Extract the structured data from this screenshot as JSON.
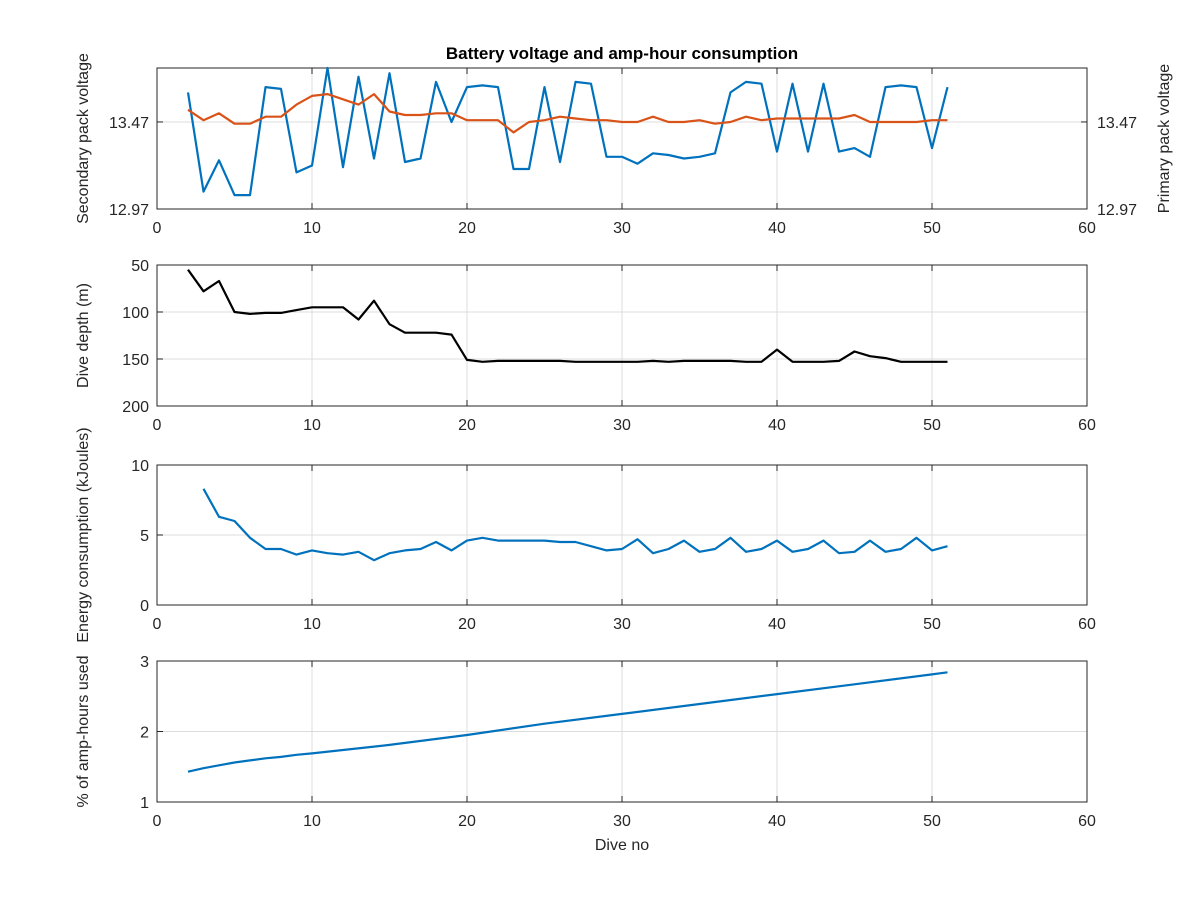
{
  "colors": {
    "blue": "#0072BD",
    "orange": "#D95319",
    "black": "#000000",
    "axis": "#262626",
    "grid": "#dcdcdc"
  },
  "chart_data": [
    {
      "type": "line",
      "title": "Battery voltage and amp-hour consumption",
      "xlabel": "",
      "ylabel": "Secondary pack voltage",
      "ylabel_right": "Primary pack voltage",
      "xlim": [
        0,
        60
      ],
      "xticks": [
        "0",
        "10",
        "20",
        "30",
        "40",
        "50",
        "60"
      ],
      "ylim": [
        12.97,
        13.78
      ],
      "yticks": [
        12.97,
        13.47
      ],
      "ytick_labels": [
        "12.97",
        "13.47"
      ],
      "ylim_right": [
        12.97,
        13.78
      ],
      "yticks_right": [
        12.97,
        13.47
      ],
      "ytick_labels_right": [
        "12.97",
        "13.47"
      ],
      "grid": true,
      "series": [
        {
          "axis": "left",
          "color": "#0072BD",
          "x": [
            2,
            3,
            4,
            5,
            6,
            7,
            8,
            9,
            10,
            11,
            12,
            13,
            14,
            15,
            16,
            17,
            18,
            19,
            20,
            21,
            22,
            23,
            24,
            25,
            26,
            27,
            28,
            29,
            30,
            31,
            32,
            33,
            34,
            35,
            36,
            37,
            38,
            39,
            40,
            41,
            42,
            43,
            44,
            45,
            46,
            47,
            48,
            49,
            50,
            51
          ],
          "y": [
            13.64,
            13.07,
            13.25,
            13.05,
            13.05,
            13.67,
            13.66,
            13.18,
            13.22,
            13.78,
            13.21,
            13.73,
            13.26,
            13.75,
            13.24,
            13.26,
            13.7,
            13.47,
            13.67,
            13.68,
            13.67,
            13.2,
            13.2,
            13.67,
            13.24,
            13.7,
            13.69,
            13.27,
            13.27,
            13.23,
            13.29,
            13.28,
            13.26,
            13.27,
            13.29,
            13.64,
            13.7,
            13.69,
            13.3,
            13.69,
            13.3,
            13.69,
            13.3,
            13.32,
            13.27,
            13.67,
            13.68,
            13.67,
            13.32,
            13.67
          ]
        },
        {
          "axis": "right",
          "color": "#D95319",
          "x": [
            2,
            3,
            4,
            5,
            6,
            7,
            8,
            9,
            10,
            11,
            12,
            13,
            14,
            15,
            16,
            17,
            18,
            19,
            20,
            21,
            22,
            23,
            24,
            25,
            26,
            27,
            28,
            29,
            30,
            31,
            32,
            33,
            34,
            35,
            36,
            37,
            38,
            39,
            40,
            41,
            42,
            43,
            44,
            45,
            46,
            47,
            48,
            49,
            50,
            51
          ],
          "y": [
            13.54,
            13.48,
            13.52,
            13.46,
            13.46,
            13.5,
            13.5,
            13.57,
            13.62,
            13.63,
            13.6,
            13.57,
            13.63,
            13.53,
            13.51,
            13.51,
            13.52,
            13.52,
            13.48,
            13.48,
            13.48,
            13.41,
            13.47,
            13.48,
            13.5,
            13.49,
            13.48,
            13.48,
            13.47,
            13.47,
            13.5,
            13.47,
            13.47,
            13.48,
            13.46,
            13.47,
            13.5,
            13.48,
            13.49,
            13.49,
            13.49,
            13.49,
            13.49,
            13.51,
            13.47,
            13.47,
            13.47,
            13.47,
            13.48,
            13.48
          ]
        }
      ]
    },
    {
      "type": "line",
      "title": "",
      "xlabel": "",
      "ylabel": "Dive depth (m)",
      "xlim": [
        0,
        60
      ],
      "xticks": [
        "0",
        "10",
        "20",
        "30",
        "40",
        "50",
        "60"
      ],
      "ylim": [
        -200,
        -50
      ],
      "yticks": [
        -50,
        -100,
        -150,
        -200
      ],
      "ytick_labels": [
        "50",
        "100",
        "150",
        "200"
      ],
      "grid": true,
      "series": [
        {
          "color": "#000000",
          "x": [
            2,
            3,
            4,
            5,
            6,
            7,
            8,
            9,
            10,
            11,
            12,
            13,
            14,
            15,
            16,
            17,
            18,
            19,
            20,
            21,
            22,
            23,
            24,
            25,
            26,
            27,
            28,
            29,
            30,
            31,
            32,
            33,
            34,
            35,
            36,
            37,
            38,
            39,
            40,
            41,
            42,
            43,
            44,
            45,
            46,
            47,
            48,
            49,
            50,
            51
          ],
          "y": [
            -55,
            -78,
            -67,
            -100,
            -102,
            -101,
            -101,
            -98,
            -95,
            -95,
            -95,
            -108,
            -88,
            -113,
            -122,
            -122,
            -122,
            -124,
            -151,
            -153,
            -152,
            -152,
            -152,
            -152,
            -152,
            -153,
            -153,
            -153,
            -153,
            -153,
            -152,
            -153,
            -152,
            -152,
            -152,
            -152,
            -153,
            -153,
            -140,
            -153,
            -153,
            -153,
            -152,
            -142,
            -147,
            -149,
            -153,
            -153,
            -153,
            -153
          ]
        }
      ]
    },
    {
      "type": "line",
      "title": "",
      "xlabel": "",
      "ylabel": "Energy consumption (kJoules)",
      "xlim": [
        0,
        60
      ],
      "xticks": [
        "0",
        "10",
        "20",
        "30",
        "40",
        "50",
        "60"
      ],
      "ylim": [
        0,
        10
      ],
      "yticks": [
        0,
        5,
        10
      ],
      "ytick_labels": [
        "0",
        "5",
        "10"
      ],
      "grid": true,
      "series": [
        {
          "color": "#0072BD",
          "x": [
            3,
            4,
            5,
            6,
            7,
            8,
            9,
            10,
            11,
            12,
            13,
            14,
            15,
            16,
            17,
            18,
            19,
            20,
            21,
            22,
            23,
            24,
            25,
            26,
            27,
            28,
            29,
            30,
            31,
            32,
            33,
            34,
            35,
            36,
            37,
            38,
            39,
            40,
            41,
            42,
            43,
            44,
            45,
            46,
            47,
            48,
            49,
            50,
            51
          ],
          "y": [
            8.3,
            6.3,
            6.0,
            4.8,
            4.0,
            4.0,
            3.6,
            3.9,
            3.7,
            3.6,
            3.8,
            3.2,
            3.7,
            3.9,
            4.0,
            4.5,
            3.9,
            4.6,
            4.8,
            4.6,
            4.6,
            4.6,
            4.6,
            4.5,
            4.5,
            4.2,
            3.9,
            4.0,
            4.7,
            3.7,
            4.0,
            4.6,
            3.8,
            4.0,
            4.8,
            3.8,
            4.0,
            4.6,
            3.8,
            4.0,
            4.6,
            3.7,
            3.8,
            4.6,
            3.8,
            4.0,
            4.8,
            3.9,
            4.2
          ]
        }
      ]
    },
    {
      "type": "line",
      "title": "",
      "xlabel": "Dive no",
      "ylabel": "% of amp-hours used",
      "xlim": [
        0,
        60
      ],
      "xticks": [
        "0",
        "10",
        "20",
        "30",
        "40",
        "50",
        "60"
      ],
      "ylim": [
        1,
        3
      ],
      "yticks": [
        1,
        2,
        3
      ],
      "ytick_labels": [
        "1",
        "2",
        "3"
      ],
      "grid": true,
      "series": [
        {
          "color": "#0072BD",
          "x": [
            2,
            3,
            4,
            5,
            6,
            7,
            8,
            9,
            10,
            15,
            20,
            25,
            30,
            35,
            40,
            45,
            50,
            51
          ],
          "y": [
            1.43,
            1.48,
            1.52,
            1.56,
            1.59,
            1.62,
            1.64,
            1.67,
            1.69,
            1.81,
            1.95,
            2.11,
            2.25,
            2.39,
            2.53,
            2.67,
            2.81,
            2.84
          ]
        }
      ]
    }
  ]
}
